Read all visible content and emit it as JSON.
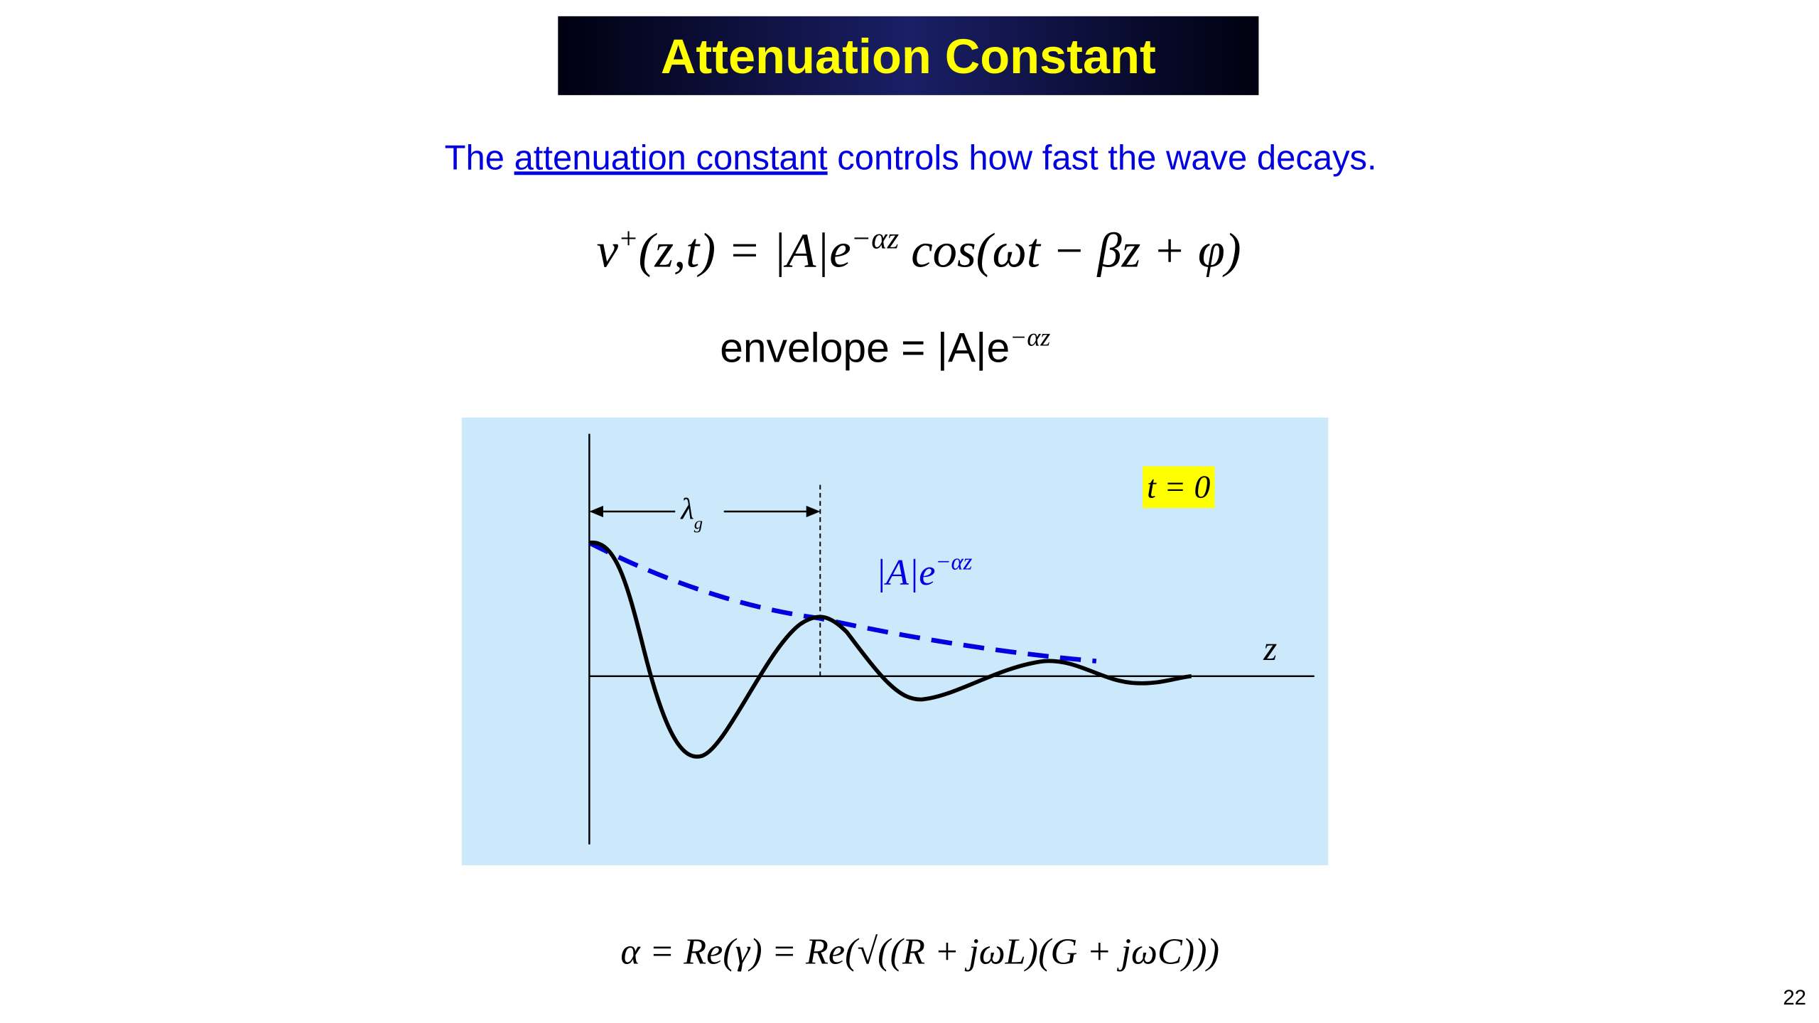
{
  "header": {
    "title": "Attenuation Constant"
  },
  "subtitle": [
    "The ",
    "attenuation constant",
    " controls how fast the wave decays."
  ],
  "equation_wave": [
    "v",
    "+",
    "(z,t) = |A|e",
    "−αz",
    " cos(ωt − βz + φ)"
  ],
  "equation_envelope": [
    "envelope = |A|e",
    "−αz"
  ],
  "plot": {
    "wavelength": [
      "λ",
      "g"
    ],
    "envelope_label": [
      "|A|e",
      "−αz"
    ],
    "axis_label": "z",
    "time_label": "t = 0"
  },
  "equation_alpha": "α = Re(γ) = Re(√((R + jωL)(G + jωC)))",
  "page_number": "22"
}
